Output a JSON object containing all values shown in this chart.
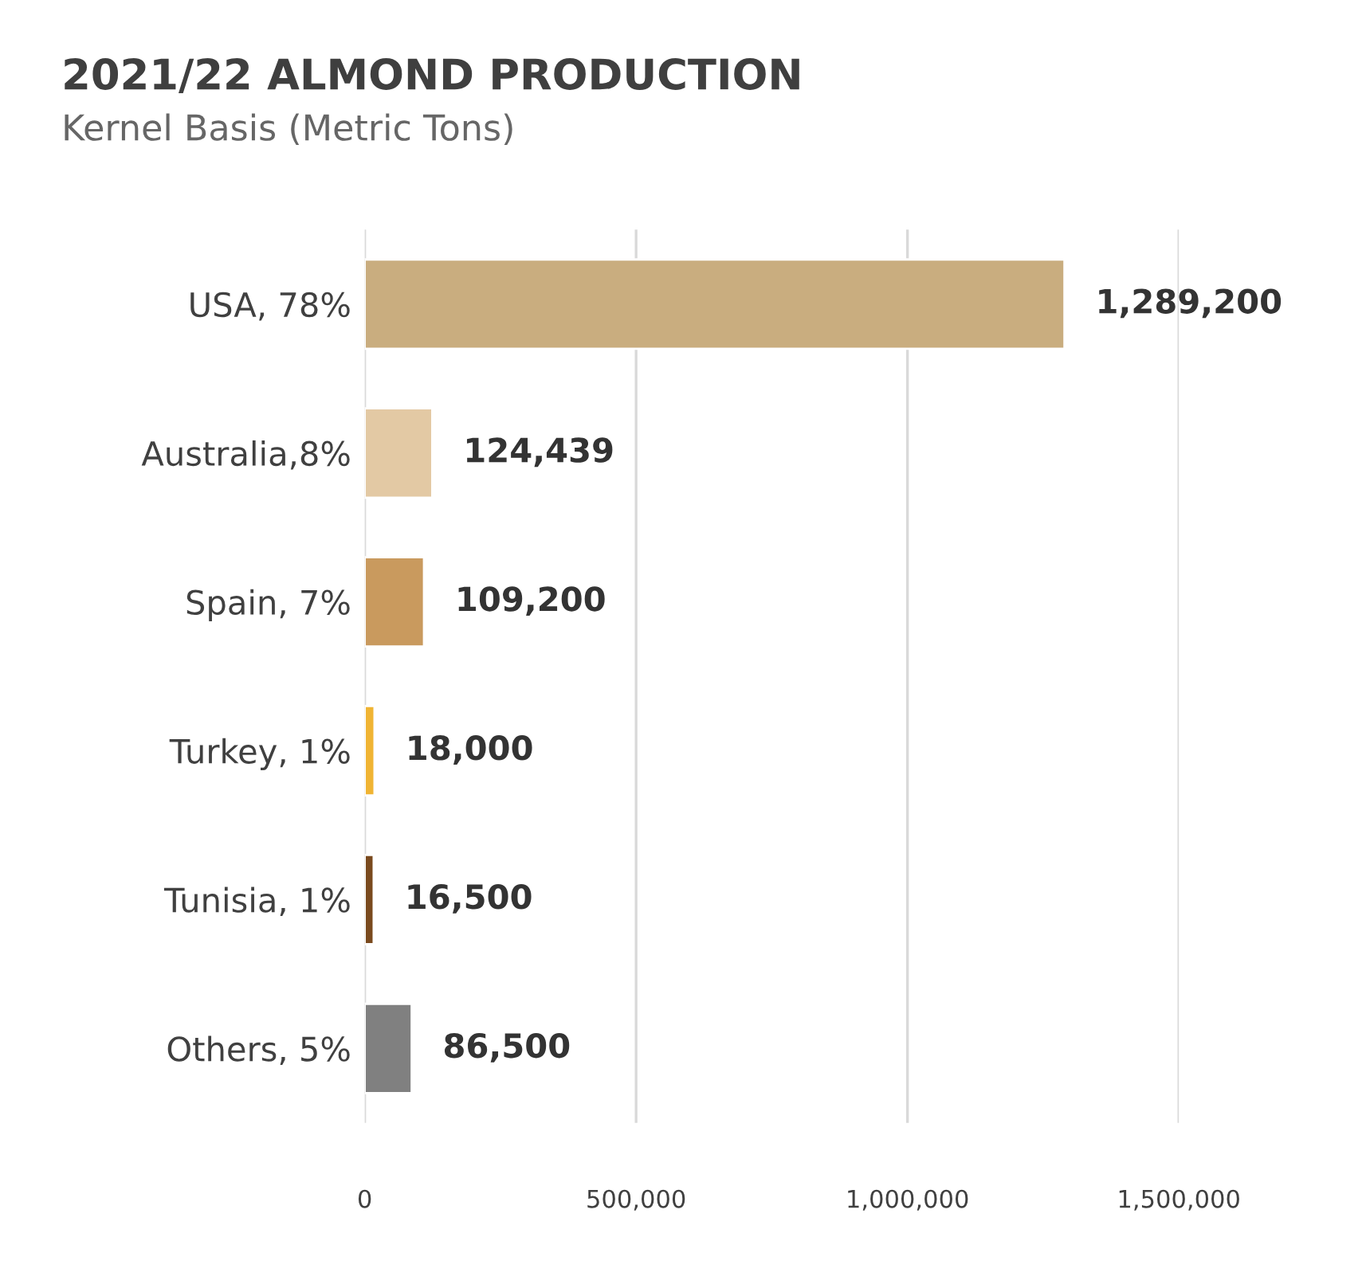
{
  "chart_data": {
    "type": "bar",
    "orientation": "horizontal",
    "title": "2021/22 ALMOND PRODUCTION",
    "subtitle": "Kernel Basis (Metric Tons)",
    "categories": [
      "USA, 78%",
      "Australia,8%",
      "Spain, 7%",
      "Turkey, 1%",
      "Tunisia, 1%",
      "Others, 5%"
    ],
    "values": [
      1289200,
      124439,
      109200,
      18000,
      16500,
      86500
    ],
    "value_labels": [
      "1,289,200",
      "124,439",
      "109,200",
      "18,000",
      "16,500",
      "86,500"
    ],
    "colors": [
      "#c9ad7f",
      "#e3c9a4",
      "#c99a5e",
      "#f0b433",
      "#7a4a1e",
      "#808080"
    ],
    "xlim": [
      0,
      1500000
    ],
    "xticks": [
      0,
      {
        "value": 500000,
        "label": "500,000"
      },
      {
        "value": 1000000,
        "label": "1,000,000"
      },
      {
        "value": 1500000,
        "label": "1,500,000"
      }
    ],
    "grid": "x",
    "legend": false
  }
}
